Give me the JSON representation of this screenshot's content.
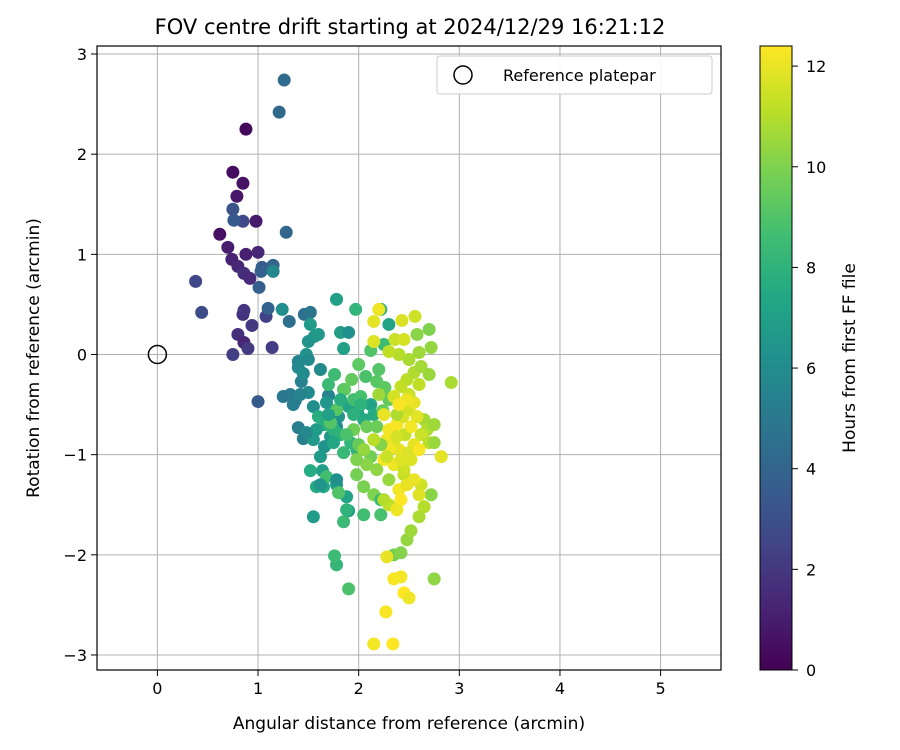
{
  "chart_data": {
    "type": "scatter",
    "title": "FOV centre drift starting at 2024/12/29 16:21:12",
    "xlabel": "Angular distance from reference (arcmin)",
    "ylabel": "Rotation from reference (arcmin)",
    "xlim": [
      -0.6,
      5.6
    ],
    "ylim": [
      -3.15,
      3.08
    ],
    "xticks": [
      0,
      1,
      2,
      3,
      4,
      5
    ],
    "yticks": [
      -3,
      -2,
      -1,
      0,
      1,
      2,
      3
    ],
    "grid": true,
    "legend": {
      "placement": "top-right",
      "entries": [
        {
          "label": "Reference platepar",
          "marker": "open-circle"
        }
      ]
    },
    "reference_point": {
      "x": 0,
      "y": 0
    },
    "colorbar": {
      "label": "Hours from first FF file",
      "range": [
        0,
        12.4
      ],
      "ticks": [
        0,
        2,
        4,
        6,
        8,
        10,
        12
      ],
      "colormap": "viridis",
      "stops": [
        "#440154",
        "#482475",
        "#414487",
        "#355f8d",
        "#2a788e",
        "#21908d",
        "#22a884",
        "#42be71",
        "#7ad151",
        "#bddf26",
        "#fde725"
      ]
    },
    "points": [
      {
        "x": 0.88,
        "y": 2.25,
        "c": 0.3
      },
      {
        "x": 0.75,
        "y": 1.82,
        "c": 0.4
      },
      {
        "x": 0.85,
        "y": 1.71,
        "c": 0.6
      },
      {
        "x": 0.79,
        "y": 1.58,
        "c": 0.8
      },
      {
        "x": 0.98,
        "y": 1.33,
        "c": 0.9
      },
      {
        "x": 0.62,
        "y": 1.2,
        "c": 0.5
      },
      {
        "x": 0.7,
        "y": 1.07,
        "c": 1.0
      },
      {
        "x": 0.88,
        "y": 1.0,
        "c": 1.1
      },
      {
        "x": 1.0,
        "y": 1.02,
        "c": 1.3
      },
      {
        "x": 0.74,
        "y": 0.95,
        "c": 1.2
      },
      {
        "x": 0.8,
        "y": 0.88,
        "c": 1.4
      },
      {
        "x": 0.86,
        "y": 0.81,
        "c": 1.6
      },
      {
        "x": 0.92,
        "y": 0.76,
        "c": 1.5
      },
      {
        "x": 0.85,
        "y": 0.4,
        "c": 1.8
      },
      {
        "x": 0.86,
        "y": 0.44,
        "c": 1.9
      },
      {
        "x": 0.94,
        "y": 0.29,
        "c": 2.0
      },
      {
        "x": 0.8,
        "y": 0.2,
        "c": 1.7
      },
      {
        "x": 0.86,
        "y": 0.12,
        "c": 1.3
      },
      {
        "x": 0.75,
        "y": 0.0,
        "c": 2.3
      },
      {
        "x": 0.9,
        "y": 0.06,
        "c": 2.1
      },
      {
        "x": 1.08,
        "y": 0.38,
        "c": 2.4
      },
      {
        "x": 1.14,
        "y": 0.07,
        "c": 2.2
      },
      {
        "x": 0.38,
        "y": 0.73,
        "c": 2.6
      },
      {
        "x": 0.44,
        "y": 0.42,
        "c": 2.8
      },
      {
        "x": 0.85,
        "y": 1.33,
        "c": 2.7
      },
      {
        "x": 0.75,
        "y": 1.45,
        "c": 3.2
      },
      {
        "x": 0.76,
        "y": 1.34,
        "c": 3.5
      },
      {
        "x": 1.04,
        "y": 0.87,
        "c": 3.6
      },
      {
        "x": 1.03,
        "y": 0.83,
        "c": 3.8
      },
      {
        "x": 1.01,
        "y": 0.67,
        "c": 3.7
      },
      {
        "x": 1.1,
        "y": 0.46,
        "c": 3.9
      },
      {
        "x": 1.15,
        "y": 0.89,
        "c": 4.0
      },
      {
        "x": 1.0,
        "y": -0.47,
        "c": 3.5
      },
      {
        "x": 1.28,
        "y": 1.22,
        "c": 4.1
      },
      {
        "x": 1.21,
        "y": 2.42,
        "c": 4.2
      },
      {
        "x": 1.26,
        "y": 2.74,
        "c": 4.3
      },
      {
        "x": 1.15,
        "y": 0.83,
        "c": 5.7
      },
      {
        "x": 1.24,
        "y": 0.45,
        "c": 6.1
      },
      {
        "x": 1.31,
        "y": 0.33,
        "c": 4.5
      },
      {
        "x": 1.46,
        "y": 0.4,
        "c": 4.6
      },
      {
        "x": 1.52,
        "y": 0.42,
        "c": 4.8
      },
      {
        "x": 1.25,
        "y": -0.42,
        "c": 4.9
      },
      {
        "x": 1.32,
        "y": -0.4,
        "c": 5.0
      },
      {
        "x": 1.37,
        "y": -0.46,
        "c": 5.1
      },
      {
        "x": 1.4,
        "y": -0.73,
        "c": 5.2
      },
      {
        "x": 1.45,
        "y": -0.84,
        "c": 5.3
      },
      {
        "x": 1.43,
        "y": -0.27,
        "c": 5.4
      },
      {
        "x": 1.4,
        "y": -0.07,
        "c": 5.6
      },
      {
        "x": 1.4,
        "y": -0.13,
        "c": 5.8
      },
      {
        "x": 1.45,
        "y": -0.19,
        "c": 6.0
      },
      {
        "x": 1.5,
        "y": -0.38,
        "c": 5.9
      },
      {
        "x": 1.55,
        "y": -0.52,
        "c": 6.2
      },
      {
        "x": 1.48,
        "y": 0.0,
        "c": 6.3
      },
      {
        "x": 1.5,
        "y": 0.13,
        "c": 6.4
      },
      {
        "x": 1.56,
        "y": 0.18,
        "c": 6.5
      },
      {
        "x": 1.6,
        "y": 0.2,
        "c": 6.6
      },
      {
        "x": 1.52,
        "y": 0.3,
        "c": 6.7
      },
      {
        "x": 1.7,
        "y": -0.41,
        "c": 5.5
      },
      {
        "x": 1.55,
        "y": -1.62,
        "c": 6.8
      },
      {
        "x": 1.78,
        "y": 0.55,
        "c": 7.0
      },
      {
        "x": 1.82,
        "y": 0.22,
        "c": 6.9
      },
      {
        "x": 1.9,
        "y": 0.22,
        "c": 6.2
      },
      {
        "x": 1.85,
        "y": 0.06,
        "c": 7.1
      },
      {
        "x": 1.9,
        "y": -0.52,
        "c": 7.2
      },
      {
        "x": 1.8,
        "y": -0.62,
        "c": 6.4
      },
      {
        "x": 1.78,
        "y": -0.72,
        "c": 6.1
      },
      {
        "x": 1.72,
        "y": -0.82,
        "c": 6.6
      },
      {
        "x": 1.66,
        "y": -0.92,
        "c": 6.3
      },
      {
        "x": 1.62,
        "y": -1.02,
        "c": 6.7
      },
      {
        "x": 1.64,
        "y": -1.16,
        "c": 7.0
      },
      {
        "x": 1.78,
        "y": -1.3,
        "c": 6.8
      },
      {
        "x": 1.65,
        "y": -1.32,
        "c": 7.4
      },
      {
        "x": 1.58,
        "y": -1.32,
        "c": 7.5
      },
      {
        "x": 1.52,
        "y": -1.16,
        "c": 7.6
      },
      {
        "x": 1.9,
        "y": -1.56,
        "c": 6.9
      },
      {
        "x": 1.88,
        "y": -1.42,
        "c": 7.3
      },
      {
        "x": 1.6,
        "y": -0.62,
        "c": 7.7
      },
      {
        "x": 1.66,
        "y": -0.7,
        "c": 7.8
      },
      {
        "x": 1.75,
        "y": -0.75,
        "c": 7.9
      },
      {
        "x": 1.82,
        "y": -0.8,
        "c": 8.0
      },
      {
        "x": 1.92,
        "y": -0.88,
        "c": 8.1
      },
      {
        "x": 1.98,
        "y": -0.95,
        "c": 8.2
      },
      {
        "x": 1.85,
        "y": -0.98,
        "c": 8.3
      },
      {
        "x": 1.7,
        "y": -0.3,
        "c": 8.4
      },
      {
        "x": 1.76,
        "y": -0.2,
        "c": 8.5
      },
      {
        "x": 1.85,
        "y": -0.35,
        "c": 8.6
      },
      {
        "x": 1.95,
        "y": -0.45,
        "c": 8.7
      },
      {
        "x": 2.02,
        "y": -0.42,
        "c": 8.8
      },
      {
        "x": 1.99,
        "y": -0.58,
        "c": 7.1
      },
      {
        "x": 2.05,
        "y": -0.65,
        "c": 7.5
      },
      {
        "x": 2.12,
        "y": -0.5,
        "c": 7.2
      },
      {
        "x": 2.15,
        "y": -0.6,
        "c": 7.6
      },
      {
        "x": 2.07,
        "y": -0.22,
        "c": 8.9
      },
      {
        "x": 2.12,
        "y": 0.04,
        "c": 9.0
      },
      {
        "x": 1.97,
        "y": 0.45,
        "c": 8.1
      },
      {
        "x": 2.22,
        "y": 0.45,
        "c": 7.8
      },
      {
        "x": 2.3,
        "y": 0.3,
        "c": 7.2
      },
      {
        "x": 2.25,
        "y": 0.1,
        "c": 8.4
      },
      {
        "x": 2.2,
        "y": -0.15,
        "c": 9.1
      },
      {
        "x": 2.18,
        "y": -0.27,
        "c": 9.2
      },
      {
        "x": 2.26,
        "y": -0.33,
        "c": 9.3
      },
      {
        "x": 2.3,
        "y": -0.45,
        "c": 9.4
      },
      {
        "x": 2.24,
        "y": -0.56,
        "c": 9.5
      },
      {
        "x": 2.18,
        "y": -0.72,
        "c": 9.6
      },
      {
        "x": 2.12,
        "y": -1.02,
        "c": 9.7
      },
      {
        "x": 1.98,
        "y": -1.2,
        "c": 9.8
      },
      {
        "x": 2.05,
        "y": -1.32,
        "c": 9.9
      },
      {
        "x": 2.15,
        "y": -1.4,
        "c": 10.0
      },
      {
        "x": 2.22,
        "y": -1.45,
        "c": 8.3
      },
      {
        "x": 2.05,
        "y": -1.6,
        "c": 8.6
      },
      {
        "x": 2.22,
        "y": -1.6,
        "c": 8.8
      },
      {
        "x": 1.9,
        "y": -2.34,
        "c": 8.9
      },
      {
        "x": 1.78,
        "y": -2.1,
        "c": 8.2
      },
      {
        "x": 1.76,
        "y": -2.01,
        "c": 8.5
      },
      {
        "x": 1.85,
        "y": -1.67,
        "c": 8.4
      },
      {
        "x": 1.88,
        "y": -1.55,
        "c": 8.0
      },
      {
        "x": 1.8,
        "y": -1.38,
        "c": 9.0
      },
      {
        "x": 1.68,
        "y": -1.22,
        "c": 8.7
      },
      {
        "x": 1.72,
        "y": -0.68,
        "c": 9.1
      },
      {
        "x": 1.78,
        "y": -0.55,
        "c": 9.2
      },
      {
        "x": 1.86,
        "y": -0.35,
        "c": 9.3
      },
      {
        "x": 1.93,
        "y": -0.25,
        "c": 9.4
      },
      {
        "x": 2.0,
        "y": -0.9,
        "c": 9.5
      },
      {
        "x": 2.35,
        "y": -2.0,
        "c": 9.8
      },
      {
        "x": 2.42,
        "y": -1.98,
        "c": 10.1
      },
      {
        "x": 2.48,
        "y": -1.85,
        "c": 10.4
      },
      {
        "x": 2.52,
        "y": -1.76,
        "c": 10.6
      },
      {
        "x": 2.6,
        "y": -1.62,
        "c": 10.8
      },
      {
        "x": 2.65,
        "y": -1.52,
        "c": 11.0
      },
      {
        "x": 2.72,
        "y": -1.4,
        "c": 10.2
      },
      {
        "x": 2.75,
        "y": -2.24,
        "c": 10.3
      },
      {
        "x": 2.62,
        "y": -1.3,
        "c": 11.5
      },
      {
        "x": 2.45,
        "y": -1.2,
        "c": 11.2
      },
      {
        "x": 2.52,
        "y": -1.05,
        "c": 11.8
      },
      {
        "x": 2.4,
        "y": -0.95,
        "c": 12.0
      },
      {
        "x": 2.35,
        "y": -0.9,
        "c": 11.9
      },
      {
        "x": 2.28,
        "y": -0.85,
        "c": 12.1
      },
      {
        "x": 2.3,
        "y": -0.75,
        "c": 12.2
      },
      {
        "x": 2.38,
        "y": -0.7,
        "c": 12.3
      },
      {
        "x": 2.44,
        "y": -0.62,
        "c": 11.7
      },
      {
        "x": 2.5,
        "y": -0.55,
        "c": 11.6
      },
      {
        "x": 2.55,
        "y": -0.48,
        "c": 12.0
      },
      {
        "x": 2.5,
        "y": -0.4,
        "c": 11.4
      },
      {
        "x": 2.42,
        "y": -0.32,
        "c": 11.3
      },
      {
        "x": 2.48,
        "y": -0.25,
        "c": 11.1
      },
      {
        "x": 2.55,
        "y": -0.18,
        "c": 10.9
      },
      {
        "x": 2.62,
        "y": -0.12,
        "c": 10.7
      },
      {
        "x": 2.7,
        "y": -0.2,
        "c": 10.5
      },
      {
        "x": 2.72,
        "y": 0.07,
        "c": 10.4
      },
      {
        "x": 2.6,
        "y": 0.02,
        "c": 10.6
      },
      {
        "x": 2.5,
        "y": -0.05,
        "c": 10.8
      },
      {
        "x": 2.4,
        "y": 0.0,
        "c": 11.0
      },
      {
        "x": 2.3,
        "y": 0.03,
        "c": 11.2
      },
      {
        "x": 2.36,
        "y": 0.15,
        "c": 11.4
      },
      {
        "x": 2.45,
        "y": 0.15,
        "c": 11.6
      },
      {
        "x": 2.58,
        "y": 0.2,
        "c": 10.2
      },
      {
        "x": 2.7,
        "y": 0.25,
        "c": 10.0
      },
      {
        "x": 2.56,
        "y": 0.38,
        "c": 11.5
      },
      {
        "x": 2.43,
        "y": 0.34,
        "c": 11.7
      },
      {
        "x": 2.2,
        "y": 0.45,
        "c": 12.1
      },
      {
        "x": 2.15,
        "y": 0.33,
        "c": 11.9
      },
      {
        "x": 2.15,
        "y": 0.13,
        "c": 11.8
      },
      {
        "x": 2.3,
        "y": -0.95,
        "c": 12.2
      },
      {
        "x": 2.25,
        "y": -1.05,
        "c": 12.3
      },
      {
        "x": 2.35,
        "y": -1.1,
        "c": 12.1
      },
      {
        "x": 2.45,
        "y": -1.15,
        "c": 11.5
      },
      {
        "x": 2.55,
        "y": -1.25,
        "c": 12.0
      },
      {
        "x": 2.6,
        "y": -1.4,
        "c": 11.8
      },
      {
        "x": 2.4,
        "y": -1.35,
        "c": 12.2
      },
      {
        "x": 2.42,
        "y": -1.45,
        "c": 12.4
      },
      {
        "x": 2.3,
        "y": -1.5,
        "c": 11.3
      },
      {
        "x": 2.25,
        "y": -1.45,
        "c": 11.0
      },
      {
        "x": 2.38,
        "y": -1.55,
        "c": 12.1
      },
      {
        "x": 2.65,
        "y": -0.65,
        "c": 10.7
      },
      {
        "x": 2.68,
        "y": -0.75,
        "c": 10.9
      },
      {
        "x": 2.75,
        "y": -0.7,
        "c": 10.6
      },
      {
        "x": 2.62,
        "y": -0.8,
        "c": 11.4
      },
      {
        "x": 2.7,
        "y": -0.88,
        "c": 11.1
      },
      {
        "x": 2.55,
        "y": -0.9,
        "c": 12.0
      },
      {
        "x": 2.5,
        "y": -0.98,
        "c": 11.7
      },
      {
        "x": 2.82,
        "y": -1.02,
        "c": 11.9
      },
      {
        "x": 2.92,
        "y": -0.28,
        "c": 10.8
      },
      {
        "x": 2.75,
        "y": -0.88,
        "c": 10.5
      },
      {
        "x": 2.28,
        "y": -2.02,
        "c": 12.0
      },
      {
        "x": 2.35,
        "y": -2.24,
        "c": 12.3
      },
      {
        "x": 2.42,
        "y": -2.22,
        "c": 12.2
      },
      {
        "x": 2.45,
        "y": -2.38,
        "c": 12.4
      },
      {
        "x": 2.5,
        "y": -2.43,
        "c": 12.1
      },
      {
        "x": 2.27,
        "y": -2.57,
        "c": 12.3
      },
      {
        "x": 2.15,
        "y": -2.89,
        "c": 12.2
      },
      {
        "x": 2.34,
        "y": -2.89,
        "c": 12.4
      },
      {
        "x": 2.08,
        "y": -0.72,
        "c": 9.6
      },
      {
        "x": 2.22,
        "y": -0.9,
        "c": 10.1
      },
      {
        "x": 2.18,
        "y": -1.15,
        "c": 10.3
      },
      {
        "x": 2.3,
        "y": -1.25,
        "c": 10.5
      },
      {
        "x": 2.38,
        "y": -0.6,
        "c": 10.9
      },
      {
        "x": 2.46,
        "y": -0.8,
        "c": 11.3
      },
      {
        "x": 2.35,
        "y": -0.42,
        "c": 11.6
      },
      {
        "x": 2.58,
        "y": -0.62,
        "c": 11.9
      },
      {
        "x": 2.52,
        "y": -0.72,
        "c": 12.2
      },
      {
        "x": 2.6,
        "y": -0.95,
        "c": 12.3
      },
      {
        "x": 2.48,
        "y": -1.3,
        "c": 12.0
      },
      {
        "x": 2.2,
        "y": -0.4,
        "c": 10.6
      },
      {
        "x": 2.0,
        "y": -0.1,
        "c": 9.3
      },
      {
        "x": 1.95,
        "y": -0.75,
        "c": 9.7
      },
      {
        "x": 1.88,
        "y": -0.8,
        "c": 8.9
      },
      {
        "x": 2.08,
        "y": -1.1,
        "c": 10.2
      },
      {
        "x": 2.15,
        "y": -0.85,
        "c": 11.1
      },
      {
        "x": 2.05,
        "y": -0.95,
        "c": 10.4
      },
      {
        "x": 1.98,
        "y": -1.05,
        "c": 10.0
      },
      {
        "x": 2.28,
        "y": -1.02,
        "c": 11.4
      },
      {
        "x": 2.42,
        "y": -1.05,
        "c": 11.8
      },
      {
        "x": 2.38,
        "y": -0.82,
        "c": 11.6
      },
      {
        "x": 2.48,
        "y": -0.45,
        "c": 12.1
      },
      {
        "x": 2.6,
        "y": -0.3,
        "c": 11.2
      },
      {
        "x": 2.25,
        "y": -0.6,
        "c": 12.0
      },
      {
        "x": 2.4,
        "y": -0.5,
        "c": 12.3
      },
      {
        "x": 1.5,
        "y": -0.05,
        "c": 5.9
      },
      {
        "x": 1.62,
        "y": -0.15,
        "c": 6.0
      },
      {
        "x": 1.68,
        "y": -0.48,
        "c": 6.5
      },
      {
        "x": 1.58,
        "y": -0.75,
        "c": 6.8
      },
      {
        "x": 1.55,
        "y": -0.85,
        "c": 6.7
      },
      {
        "x": 1.48,
        "y": -0.78,
        "c": 5.8
      },
      {
        "x": 1.35,
        "y": -0.5,
        "c": 5.2
      },
      {
        "x": 1.42,
        "y": -0.4,
        "c": 5.6
      },
      {
        "x": 1.62,
        "y": -1.3,
        "c": 6.4
      },
      {
        "x": 1.78,
        "y": -1.25,
        "c": 6.2
      },
      {
        "x": 1.7,
        "y": -0.6,
        "c": 7.0
      },
      {
        "x": 1.75,
        "y": -0.88,
        "c": 7.4
      },
      {
        "x": 1.82,
        "y": -0.45,
        "c": 7.7
      },
      {
        "x": 1.95,
        "y": -0.6,
        "c": 7.9
      },
      {
        "x": 2.02,
        "y": -0.5,
        "c": 8.0
      }
    ]
  }
}
